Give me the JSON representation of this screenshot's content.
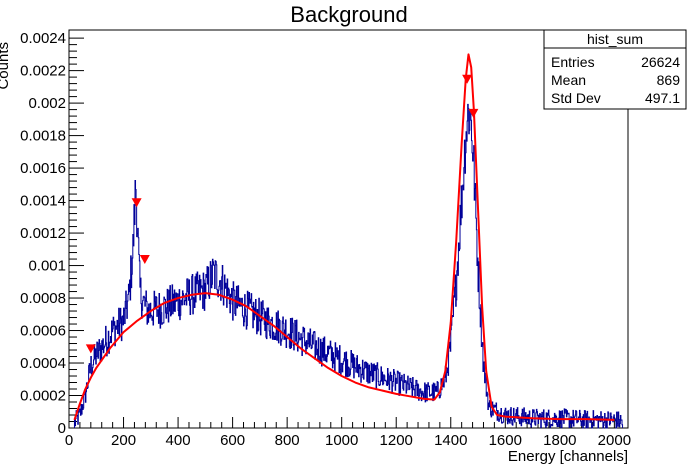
{
  "chart_data": {
    "type": "line",
    "title": "Background",
    "xlabel": "Energy [channels]",
    "ylabel": "Counts",
    "xlim": [
      0,
      2050
    ],
    "ylim": [
      0,
      0.00245
    ],
    "x_ticks": [
      0,
      200,
      400,
      600,
      800,
      1000,
      1200,
      1400,
      1600,
      1800,
      2000
    ],
    "x_tick_labels": [
      "0",
      "200",
      "400",
      "600",
      "800",
      "1000",
      "1200",
      "1400",
      "1600",
      "1800",
      "2000"
    ],
    "y_ticks": [
      0,
      0.0002,
      0.0004,
      0.0006,
      0.0008,
      0.001,
      0.0012,
      0.0014,
      0.0016,
      0.0018,
      0.002,
      0.0022,
      0.0024
    ],
    "y_tick_labels": [
      "0",
      "0.0002",
      "0.0004",
      "0.0006",
      "0.0008",
      "0.001",
      "0.0012",
      "0.0014",
      "0.0016",
      "0.0018",
      "0.002",
      "0.0022",
      "0.0024"
    ],
    "stats_box": {
      "title": "hist_sum",
      "rows": [
        {
          "label": "Entries",
          "value": "26624"
        },
        {
          "label": "Mean",
          "value": "869"
        },
        {
          "label": "Std Dev",
          "value": "497.1"
        }
      ]
    },
    "histogram_color": "#000099",
    "fit_color": "#ff0000",
    "marker_color": "#ff0000",
    "histogram_envelope": [
      [
        20,
        3e-05
      ],
      [
        40,
        8e-05
      ],
      [
        60,
        0.0002
      ],
      [
        80,
        0.00038
      ],
      [
        100,
        0.00045
      ],
      [
        130,
        0.00052
      ],
      [
        160,
        0.0006
      ],
      [
        200,
        0.00066
      ],
      [
        220,
        0.0008
      ],
      [
        235,
        0.0011
      ],
      [
        245,
        0.0015
      ],
      [
        250,
        0.0013
      ],
      [
        260,
        0.00085
      ],
      [
        270,
        0.00078
      ],
      [
        290,
        0.00072
      ],
      [
        350,
        0.00074
      ],
      [
        400,
        0.00078
      ],
      [
        450,
        0.00082
      ],
      [
        500,
        0.00085
      ],
      [
        530,
        0.00095
      ],
      [
        560,
        0.0009
      ],
      [
        600,
        0.00078
      ],
      [
        700,
        0.00068
      ],
      [
        800,
        0.0006
      ],
      [
        900,
        0.0005
      ],
      [
        1000,
        0.00042
      ],
      [
        1100,
        0.00034
      ],
      [
        1200,
        0.00028
      ],
      [
        1300,
        0.00022
      ],
      [
        1350,
        0.00022
      ],
      [
        1380,
        0.0003
      ],
      [
        1400,
        0.0005
      ],
      [
        1420,
        0.0009
      ],
      [
        1440,
        0.0014
      ],
      [
        1455,
        0.0018
      ],
      [
        1465,
        0.00195
      ],
      [
        1475,
        0.0019
      ],
      [
        1485,
        0.0016
      ],
      [
        1500,
        0.001
      ],
      [
        1520,
        0.0004
      ],
      [
        1540,
        0.00013
      ],
      [
        1600,
        8e-05
      ],
      [
        1700,
        6e-05
      ],
      [
        1800,
        6e-05
      ],
      [
        1900,
        5e-05
      ],
      [
        2000,
        5e-05
      ],
      [
        2030,
        4e-05
      ]
    ],
    "fit_curve": [
      [
        20,
        5e-05
      ],
      [
        40,
        0.00015
      ],
      [
        60,
        0.00024
      ],
      [
        80,
        0.00031
      ],
      [
        100,
        0.00037
      ],
      [
        150,
        0.00049
      ],
      [
        200,
        0.00059
      ],
      [
        250,
        0.00066
      ],
      [
        300,
        0.00072
      ],
      [
        350,
        0.00077
      ],
      [
        400,
        0.0008
      ],
      [
        450,
        0.00082
      ],
      [
        500,
        0.00083
      ],
      [
        550,
        0.00082
      ],
      [
        600,
        0.00079
      ],
      [
        650,
        0.00075
      ],
      [
        700,
        0.00069
      ],
      [
        750,
        0.00063
      ],
      [
        800,
        0.00056
      ],
      [
        850,
        0.00049
      ],
      [
        900,
        0.00043
      ],
      [
        950,
        0.00037
      ],
      [
        1000,
        0.00032
      ],
      [
        1050,
        0.00028
      ],
      [
        1100,
        0.00025
      ],
      [
        1150,
        0.00023
      ],
      [
        1200,
        0.00021
      ],
      [
        1250,
        0.000195
      ],
      [
        1300,
        0.00018
      ],
      [
        1340,
        0.000175
      ],
      [
        1360,
        0.00022
      ],
      [
        1380,
        0.00035
      ],
      [
        1400,
        0.00065
      ],
      [
        1420,
        0.00115
      ],
      [
        1440,
        0.00175
      ],
      [
        1455,
        0.00215
      ],
      [
        1465,
        0.0023
      ],
      [
        1475,
        0.00222
      ],
      [
        1485,
        0.00195
      ],
      [
        1500,
        0.00135
      ],
      [
        1515,
        0.00075
      ],
      [
        1530,
        0.00035
      ],
      [
        1550,
        0.00013
      ],
      [
        1570,
        8e-05
      ],
      [
        1600,
        7e-05
      ],
      [
        1700,
        6e-05
      ],
      [
        1800,
        5.5e-05
      ],
      [
        1900,
        5.5e-05
      ],
      [
        2000,
        5e-05
      ]
    ],
    "peak_markers": [
      {
        "x": 80,
        "y": 0.00049
      },
      {
        "x": 248,
        "y": 0.00139
      },
      {
        "x": 278,
        "y": 0.00104
      },
      {
        "x": 1460,
        "y": 0.00215
      },
      {
        "x": 1483,
        "y": 0.00194
      }
    ]
  }
}
